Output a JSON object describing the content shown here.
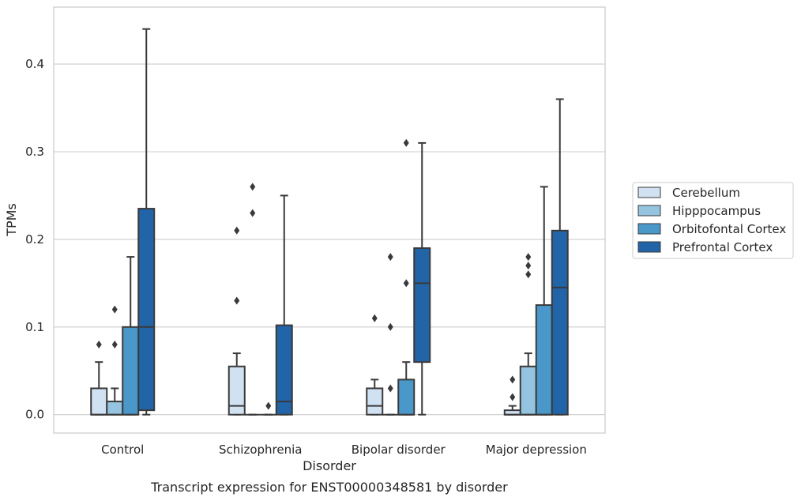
{
  "caption": "Transcript expression for ENST00000348581 by disorder",
  "legend_position": "right",
  "colors": {
    "Cerebellum": "#d0e1f2",
    "Hipppocampus": "#94c4df",
    "Orbitofontal Cortex": "#4a98c9",
    "Prefrontal Cortex": "#2164a8",
    "edge": "#3a3a3a",
    "grid": "#cccccc",
    "frame": "#cccccc"
  },
  "chart_data": {
    "type": "box",
    "title": "",
    "xlabel": "Disorder",
    "ylabel": "TPMs",
    "ylim": [
      -0.021,
      0.465
    ],
    "yticks": [
      0.0,
      0.1,
      0.2,
      0.3,
      0.4
    ],
    "ytick_labels": [
      "0.0",
      "0.1",
      "0.2",
      "0.3",
      "0.4"
    ],
    "grid": true,
    "categories": [
      "Control",
      "Schizophrenia",
      "Bipolar disorder",
      "Major depression"
    ],
    "series": [
      {
        "name": "Cerebellum",
        "boxes": [
          {
            "low": 0.0,
            "q1": 0.0,
            "median": 0.0,
            "q3": 0.03,
            "high": 0.06,
            "outliers": [
              0.08
            ]
          },
          {
            "low": 0.0,
            "q1": 0.0,
            "median": 0.01,
            "q3": 0.055,
            "high": 0.07,
            "outliers": [
              0.13,
              0.21
            ]
          },
          {
            "low": 0.0,
            "q1": 0.0,
            "median": 0.01,
            "q3": 0.03,
            "high": 0.04,
            "outliers": [
              0.11
            ]
          },
          {
            "low": 0.0,
            "q1": 0.0,
            "median": 0.0,
            "q3": 0.005,
            "high": 0.01,
            "outliers": [
              0.02,
              0.04
            ]
          }
        ]
      },
      {
        "name": "Hipppocampus",
        "boxes": [
          {
            "low": 0.0,
            "q1": 0.0,
            "median": 0.0,
            "q3": 0.015,
            "high": 0.03,
            "outliers": [
              0.08,
              0.12
            ]
          },
          {
            "low": 0.0,
            "q1": 0.0,
            "median": 0.0,
            "q3": 0.0,
            "high": 0.0,
            "outliers": [
              0.23,
              0.26
            ]
          },
          {
            "low": 0.0,
            "q1": 0.0,
            "median": 0.0,
            "q3": 0.0,
            "high": 0.0,
            "outliers": [
              0.03,
              0.1,
              0.18
            ]
          },
          {
            "low": 0.0,
            "q1": 0.0,
            "median": 0.0,
            "q3": 0.055,
            "high": 0.07,
            "outliers": [
              0.16,
              0.17,
              0.18
            ]
          }
        ]
      },
      {
        "name": "Orbitofontal Cortex",
        "boxes": [
          {
            "low": 0.0,
            "q1": 0.0,
            "median": 0.0,
            "q3": 0.1,
            "high": 0.18,
            "outliers": []
          },
          {
            "low": 0.0,
            "q1": 0.0,
            "median": 0.0,
            "q3": 0.0,
            "high": 0.0,
            "outliers": [
              0.01
            ]
          },
          {
            "low": 0.0,
            "q1": 0.0,
            "median": 0.0,
            "q3": 0.04,
            "high": 0.06,
            "outliers": [
              0.15,
              0.31
            ]
          },
          {
            "low": 0.0,
            "q1": 0.0,
            "median": 0.0,
            "q3": 0.125,
            "high": 0.26,
            "outliers": []
          }
        ]
      },
      {
        "name": "Prefrontal Cortex",
        "boxes": [
          {
            "low": 0.0,
            "q1": 0.005,
            "median": 0.1,
            "q3": 0.235,
            "high": 0.44,
            "outliers": []
          },
          {
            "low": 0.0,
            "q1": 0.0,
            "median": 0.015,
            "q3": 0.102,
            "high": 0.25,
            "outliers": []
          },
          {
            "low": 0.0,
            "q1": 0.06,
            "median": 0.15,
            "q3": 0.19,
            "high": 0.31,
            "outliers": []
          },
          {
            "low": 0.0,
            "q1": 0.0,
            "median": 0.145,
            "q3": 0.21,
            "high": 0.36,
            "outliers": []
          }
        ]
      }
    ]
  }
}
